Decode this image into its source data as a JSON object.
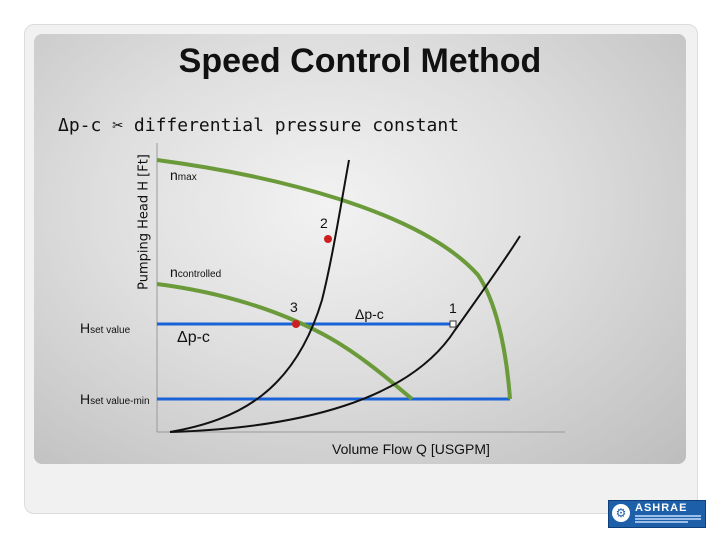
{
  "title": "Speed Control Method",
  "subtitle": {
    "prefix": "Δp-c",
    "icon": "scissors-icon",
    "glyph": "✂",
    "text": "differential pressure constant"
  },
  "axes": {
    "y_label": "Pumping Head H [Ft]",
    "x_label": "Volume Flow Q [USGPM]"
  },
  "labels": {
    "n_max": {
      "base": "n",
      "sub": "max"
    },
    "n_controlled": {
      "base": "n",
      "sub": "controlled"
    },
    "h_set": {
      "base": "H",
      "sub": "set value"
    },
    "h_set_min": {
      "base": "H",
      "sub": "set value-min"
    },
    "dp_center": "Δp-c",
    "dp_left": "Δp-c",
    "point_1": "1",
    "point_2": "2",
    "point_3": "3"
  },
  "colors": {
    "pump_curve": "#6b9a3a",
    "setpoint_line": "#1a62d8",
    "system_curve": "#111111",
    "operating_point": "#cc1f1f"
  },
  "logo": {
    "text": "ASHRAE",
    "icon": "gear-icon"
  }
}
